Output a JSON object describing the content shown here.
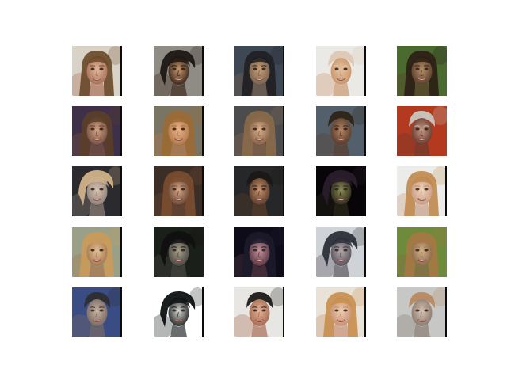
{
  "figure": {
    "rows": 5,
    "cols": 5,
    "samples": [
      {
        "bg": "#d9d2c7",
        "hair": "#6a4a2a",
        "skin": "#e2b898",
        "shade": "#a8725a",
        "hair_style": "long",
        "edge": "right"
      },
      {
        "bg": "#8f8c86",
        "hair": "#1e1814",
        "skin": "#c7976d",
        "shade": "#3d2a1d",
        "hair_style": "side",
        "edge": "right"
      },
      {
        "bg": "#3e4754",
        "hair": "#1f2024",
        "skin": "#c79f76",
        "shade": "#7b6450",
        "hair_style": "long",
        "edge": "right"
      },
      {
        "bg": "#ebe9e6",
        "hair": "#ddc8b4",
        "skin": "#e6c2a0",
        "shade": "#c9986e",
        "hair_style": "short",
        "edge": "right"
      },
      {
        "bg": "#4a6a2f",
        "hair": "#2d2016",
        "skin": "#b68f6a",
        "shade": "#5a402b",
        "hair_style": "long",
        "edge": "none"
      },
      {
        "bg": "#3e3048",
        "hair": "#5b3f29",
        "skin": "#d1a385",
        "shade": "#7a5443",
        "hair_style": "long",
        "edge": "right"
      },
      {
        "bg": "#7a7464",
        "hair": "#9a6a34",
        "skin": "#e8b589",
        "shade": "#b57a4d",
        "hair_style": "long",
        "edge": "right"
      },
      {
        "bg": "#4c4c4f",
        "hair": "#8a6a4a",
        "skin": "#d8b08d",
        "shade": "#8a6448",
        "hair_style": "long",
        "edge": "right"
      },
      {
        "bg": "#53606b",
        "hair": "#2e2418",
        "skin": "#b48566",
        "shade": "#5a3d2b",
        "hair_style": "short",
        "edge": "right"
      },
      {
        "bg": "#b33a1f",
        "hair": "#c9c6c0",
        "skin": "#c49a86",
        "shade": "#6a3a2f",
        "hair_style": "short",
        "edge": "none"
      },
      {
        "bg": "#2a2a2f",
        "hair": "#d0b28a",
        "skin": "#d8c2b0",
        "shade": "#92847b",
        "hair_style": "side",
        "edge": "right"
      },
      {
        "bg": "#3a2e26",
        "hair": "#7b4d2f",
        "skin": "#d4a789",
        "shade": "#6f4a36",
        "hair_style": "long",
        "edge": "right"
      },
      {
        "bg": "#262729",
        "hair": "#1b1715",
        "skin": "#c79470",
        "shade": "#5d3e2c",
        "hair_style": "short",
        "edge": "right"
      },
      {
        "bg": "#070508",
        "hair": "#2a1c2c",
        "skin": "#8c8a57",
        "shade": "#2e2c1b",
        "hair_style": "side",
        "edge": "none"
      },
      {
        "bg": "#ebece9",
        "hair": "#c08a4f",
        "skin": "#f1d4bd",
        "shade": "#c89d83",
        "hair_style": "long",
        "edge": "right"
      },
      {
        "bg": "#9aa087",
        "hair": "#c99b5a",
        "skin": "#e4c19a",
        "shade": "#a6784f",
        "hair_style": "long",
        "edge": "right"
      },
      {
        "bg": "#1b1f19",
        "hair": "#101010",
        "skin": "#a79f8a",
        "shade": "#4b4a44",
        "hair_style": "side",
        "edge": "none"
      },
      {
        "bg": "#0f0c1a",
        "hair": "#1c1b2a",
        "skin": "#c48f9a",
        "shade": "#5a3b46",
        "hair_style": "long",
        "edge": "none"
      },
      {
        "bg": "#cfd2d6",
        "hair": "#2b2f38",
        "skin": "#b1a8a6",
        "shade": "#5b5560",
        "hair_style": "side",
        "edge": "right"
      },
      {
        "bg": "#6e8b3b",
        "hair": "#a57744",
        "skin": "#d5b188",
        "shade": "#8a6a4b",
        "hair_style": "long",
        "edge": "none"
      },
      {
        "bg": "#3a4c84",
        "hair": "#2c2d30",
        "skin": "#c7b1a0",
        "shade": "#7b6c64",
        "hair_style": "short",
        "edge": "right"
      },
      {
        "bg": "#ffffff",
        "hair": "#0f1213",
        "skin": "#d7d6d1",
        "shade": "#2b2f2f",
        "hair_style": "side",
        "edge": "right"
      },
      {
        "bg": "#e8e6e3",
        "hair": "#1b1a18",
        "skin": "#e2b495",
        "shade": "#a86d55",
        "hair_style": "short",
        "edge": "right"
      },
      {
        "bg": "#e9e2d6",
        "hair": "#c78f4f",
        "skin": "#f0cdb0",
        "shade": "#c69275",
        "hair_style": "long",
        "edge": "right"
      },
      {
        "bg": "#c7c8c6",
        "hair": "#b8895e",
        "skin": "#d8c4b5",
        "shade": "#8a7a70",
        "hair_style": "short",
        "edge": "right"
      }
    ]
  }
}
